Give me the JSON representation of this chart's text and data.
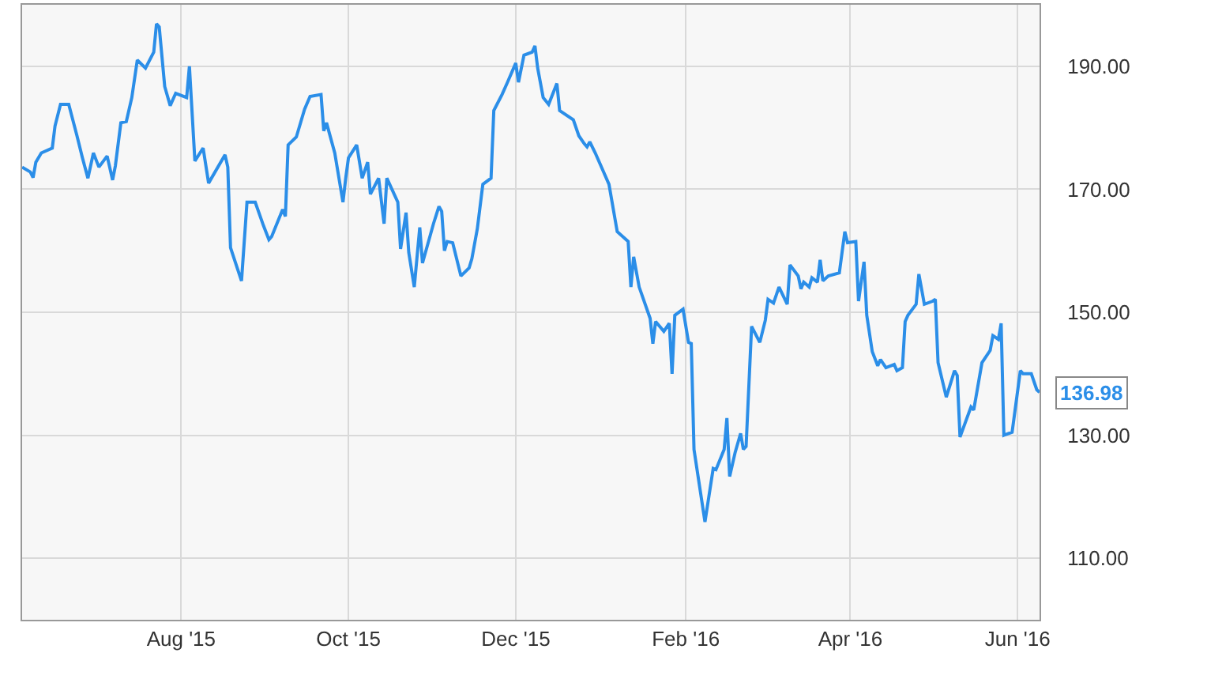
{
  "chart_data": {
    "type": "line",
    "grid": true,
    "marker": "none",
    "line_style": "solid",
    "x": [
      "2015-06-04",
      "2015-06-07",
      "2015-06-08",
      "2015-06-09",
      "2015-06-11",
      "2015-06-15",
      "2015-06-16",
      "2015-06-18",
      "2015-06-21",
      "2015-06-24",
      "2015-06-26",
      "2015-06-28",
      "2015-06-30",
      "2015-07-02",
      "2015-07-05",
      "2015-07-07",
      "2015-07-08",
      "2015-07-10",
      "2015-07-12",
      "2015-07-14",
      "2015-07-16",
      "2015-07-19",
      "2015-07-22",
      "2015-07-23",
      "2015-07-24",
      "2015-07-26",
      "2015-07-28",
      "2015-07-30",
      "2015-08-03",
      "2015-08-04",
      "2015-08-06",
      "2015-08-09",
      "2015-08-11",
      "2015-08-17",
      "2015-08-18",
      "2015-08-19",
      "2015-08-23",
      "2015-08-25",
      "2015-08-28",
      "2015-08-31",
      "2015-09-02",
      "2015-09-03",
      "2015-09-07",
      "2015-09-08",
      "2015-09-09",
      "2015-09-12",
      "2015-09-15",
      "2015-09-17",
      "2015-09-21",
      "2015-09-22",
      "2015-09-23",
      "2015-09-26",
      "2015-09-29",
      "2015-09-30",
      "2015-10-01",
      "2015-10-04",
      "2015-10-06",
      "2015-10-08",
      "2015-10-09",
      "2015-10-12",
      "2015-10-14",
      "2015-10-15",
      "2015-10-19",
      "2015-10-20",
      "2015-10-22",
      "2015-10-23",
      "2015-10-25",
      "2015-10-27",
      "2015-10-28",
      "2015-11-01",
      "2015-11-03",
      "2015-11-04",
      "2015-11-05",
      "2015-11-06",
      "2015-11-08",
      "2015-11-11",
      "2015-11-14",
      "2015-11-15",
      "2015-11-17",
      "2015-11-19",
      "2015-11-22",
      "2015-11-23",
      "2015-11-26",
      "2015-11-28",
      "2015-12-01",
      "2015-12-02",
      "2015-12-04",
      "2015-12-07",
      "2015-12-08",
      "2015-12-09",
      "2015-12-11",
      "2015-12-13",
      "2015-12-16",
      "2015-12-17",
      "2015-12-22",
      "2015-12-24",
      "2015-12-26",
      "2015-12-27",
      "2015-12-28",
      "2015-12-30",
      "2016-01-04",
      "2016-01-07",
      "2016-01-11",
      "2016-01-12",
      "2016-01-13",
      "2016-01-15",
      "2016-01-19",
      "2016-01-20",
      "2016-01-21",
      "2016-01-24",
      "2016-01-26",
      "2016-01-27",
      "2016-01-28",
      "2016-01-31",
      "2016-02-02",
      "2016-02-03",
      "2016-02-04",
      "2016-02-08",
      "2016-02-11",
      "2016-02-12",
      "2016-02-15",
      "2016-02-16",
      "2016-02-17",
      "2016-02-19",
      "2016-02-21",
      "2016-02-22",
      "2016-02-23",
      "2016-02-25",
      "2016-02-28",
      "2016-03-01",
      "2016-03-02",
      "2016-03-04",
      "2016-03-06",
      "2016-03-09",
      "2016-03-10",
      "2016-03-13",
      "2016-03-14",
      "2016-03-15",
      "2016-03-17",
      "2016-03-18",
      "2016-03-20",
      "2016-03-21",
      "2016-03-22",
      "2016-03-24",
      "2016-03-28",
      "2016-03-30",
      "2016-03-31",
      "2016-04-03",
      "2016-04-04",
      "2016-04-06",
      "2016-04-07",
      "2016-04-09",
      "2016-04-11",
      "2016-04-12",
      "2016-04-14",
      "2016-04-17",
      "2016-04-18",
      "2016-04-20",
      "2016-04-21",
      "2016-04-22",
      "2016-04-25",
      "2016-04-26",
      "2016-04-28",
      "2016-05-01",
      "2016-05-02",
      "2016-05-03",
      "2016-05-06",
      "2016-05-09",
      "2016-05-10",
      "2016-05-11",
      "2016-05-15",
      "2016-05-16",
      "2016-05-19",
      "2016-05-22",
      "2016-05-23",
      "2016-05-25",
      "2016-05-26",
      "2016-05-27",
      "2016-05-30",
      "2016-06-02",
      "2016-06-03",
      "2016-06-06",
      "2016-06-08",
      "2016-06-09"
    ],
    "series": [
      {
        "color": "#2b8ee8",
        "values": [
          173.6,
          172.8,
          171.9,
          174.4,
          175.9,
          176.7,
          180.3,
          183.8,
          183.8,
          178.7,
          175.1,
          171.8,
          175.9,
          173.6,
          175.4,
          171.5,
          173.8,
          180.8,
          181.0,
          184.9,
          191.0,
          189.7,
          192.3,
          196.9,
          196.4,
          186.7,
          183.6,
          185.6,
          184.9,
          190.0,
          174.6,
          176.7,
          171.0,
          175.6,
          173.6,
          160.5,
          155.1,
          167.9,
          167.9,
          164.1,
          161.8,
          162.3,
          166.7,
          165.6,
          177.2,
          178.5,
          183.0,
          185.1,
          185.4,
          179.5,
          180.8,
          175.9,
          167.9,
          171.8,
          175.1,
          177.2,
          171.8,
          174.4,
          169.2,
          171.8,
          164.4,
          171.8,
          167.9,
          160.3,
          166.2,
          159.7,
          154.1,
          163.8,
          158.0,
          164.4,
          167.2,
          166.4,
          160.0,
          161.5,
          161.3,
          155.9,
          157.2,
          158.7,
          163.6,
          170.8,
          171.8,
          182.8,
          185.4,
          187.4,
          190.5,
          187.4,
          191.8,
          192.3,
          193.3,
          189.7,
          184.9,
          183.8,
          187.2,
          182.8,
          181.3,
          178.7,
          177.4,
          176.9,
          177.7,
          175.9,
          170.8,
          163.1,
          161.5,
          154.1,
          159.0,
          154.1,
          149.0,
          144.9,
          148.5,
          146.9,
          148.2,
          140.0,
          149.5,
          150.5,
          145.1,
          144.9,
          127.7,
          115.9,
          124.6,
          124.4,
          127.7,
          132.8,
          123.3,
          127.2,
          130.3,
          127.7,
          128.2,
          147.7,
          145.1,
          148.7,
          152.1,
          151.5,
          154.1,
          151.3,
          157.7,
          155.9,
          153.8,
          154.9,
          154.1,
          155.6,
          154.9,
          158.5,
          155.1,
          155.9,
          156.4,
          163.1,
          161.3,
          161.5,
          151.8,
          158.2,
          149.5,
          143.6,
          141.3,
          142.3,
          141.0,
          141.5,
          140.5,
          141.0,
          148.5,
          149.5,
          151.3,
          156.2,
          151.3,
          151.8,
          152.1,
          141.8,
          136.2,
          140.5,
          139.7,
          129.7,
          134.6,
          134.1,
          141.8,
          143.8,
          146.2,
          145.6,
          148.2,
          130.0,
          130.5,
          140.5,
          140.0,
          140.0,
          137.4,
          136.98
        ]
      }
    ],
    "xlim": [
      "2015-06-04",
      "2016-06-09"
    ],
    "xticks": [
      {
        "value": "2015-08-01",
        "label": "Aug '15"
      },
      {
        "value": "2015-10-01",
        "label": "Oct '15"
      },
      {
        "value": "2015-12-01",
        "label": "Dec '15"
      },
      {
        "value": "2016-02-01",
        "label": "Feb '16"
      },
      {
        "value": "2016-04-01",
        "label": "Apr '16"
      },
      {
        "value": "2016-06-01",
        "label": "Jun '16"
      }
    ],
    "ylim": [
      100,
      200
    ],
    "yticks": [
      {
        "value": 110,
        "label": "110.00"
      },
      {
        "value": 130,
        "label": "130.00"
      },
      {
        "value": 150,
        "label": "150.00"
      },
      {
        "value": 170,
        "label": "170.00"
      },
      {
        "value": 190,
        "label": "190.00"
      }
    ],
    "annotations": [
      {
        "text": "136.98",
        "x": "2016-06-09",
        "y": 136.98
      }
    ]
  }
}
